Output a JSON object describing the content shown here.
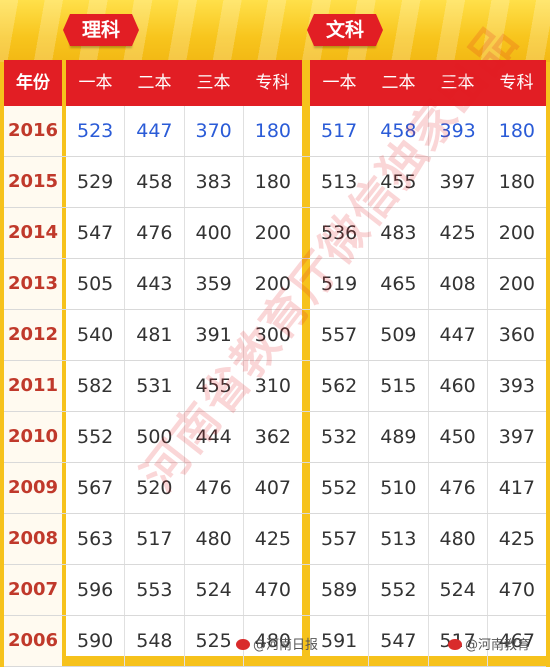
{
  "header": {
    "science_tag": "理科",
    "liberal_tag": "文科"
  },
  "table": {
    "year_header": "年份",
    "science_cols": [
      "一本",
      "二本",
      "三本",
      "专科"
    ],
    "liberal_cols": [
      "一本",
      "二本",
      "三本",
      "专科"
    ],
    "rows": [
      {
        "year": "2016",
        "science": [
          "523",
          "447",
          "370",
          "180"
        ],
        "liberal": [
          "517",
          "458",
          "393",
          "180"
        ]
      },
      {
        "year": "2015",
        "science": [
          "529",
          "458",
          "383",
          "180"
        ],
        "liberal": [
          "513",
          "455",
          "397",
          "180"
        ]
      },
      {
        "year": "2014",
        "science": [
          "547",
          "476",
          "400",
          "200"
        ],
        "liberal": [
          "536",
          "483",
          "425",
          "200"
        ]
      },
      {
        "year": "2013",
        "science": [
          "505",
          "443",
          "359",
          "200"
        ],
        "liberal": [
          "519",
          "465",
          "408",
          "200"
        ]
      },
      {
        "year": "2012",
        "science": [
          "540",
          "481",
          "391",
          "300"
        ],
        "liberal": [
          "557",
          "509",
          "447",
          "360"
        ]
      },
      {
        "year": "2011",
        "science": [
          "582",
          "531",
          "455",
          "310"
        ],
        "liberal": [
          "562",
          "515",
          "460",
          "393"
        ]
      },
      {
        "year": "2010",
        "science": [
          "552",
          "500",
          "444",
          "362"
        ],
        "liberal": [
          "532",
          "489",
          "450",
          "397"
        ]
      },
      {
        "year": "2009",
        "science": [
          "567",
          "520",
          "476",
          "407"
        ],
        "liberal": [
          "552",
          "510",
          "476",
          "417"
        ]
      },
      {
        "year": "2008",
        "science": [
          "563",
          "517",
          "480",
          "425"
        ],
        "liberal": [
          "557",
          "513",
          "480",
          "425"
        ]
      },
      {
        "year": "2007",
        "science": [
          "596",
          "553",
          "524",
          "470"
        ],
        "liberal": [
          "589",
          "552",
          "524",
          "470"
        ]
      },
      {
        "year": "2006",
        "science": [
          "590",
          "548",
          "525",
          "480"
        ],
        "liberal": [
          "591",
          "547",
          "517",
          "467"
        ]
      }
    ]
  },
  "watermark": "河南省教育厅微信独家出品",
  "footer": {
    "mark1": "@河南日报",
    "mark2": "@河南教育"
  },
  "colors": {
    "accent_red": "#e21e24",
    "background_yellow": "#f6c21c",
    "highlight_blue": "#2a5bd7"
  }
}
